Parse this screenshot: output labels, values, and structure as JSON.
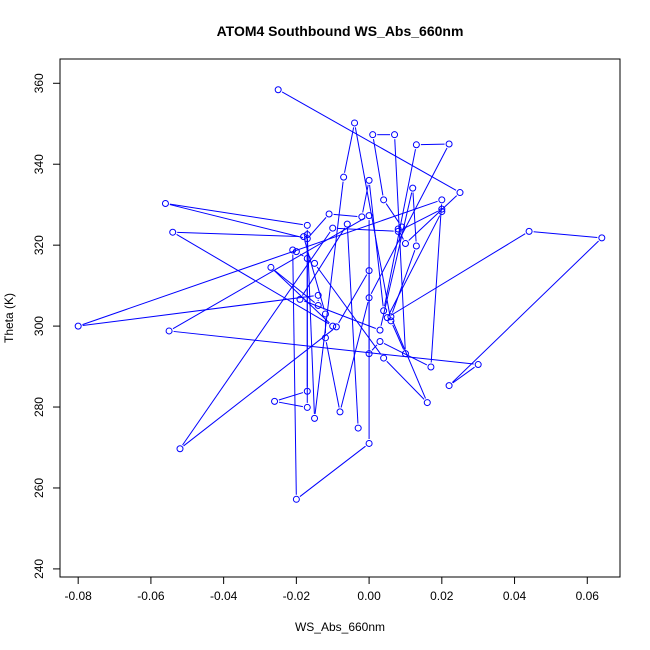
{
  "chart_data": {
    "type": "line",
    "title": "ATOM4 Southbound WS_Abs_660nm",
    "xlabel": "WS_Abs_660nm",
    "ylabel": "Theta (K)",
    "xlim": [
      -0.085,
      0.069
    ],
    "ylim": [
      238,
      366
    ],
    "xticks": [
      "-0.08",
      "-0.06",
      "-0.04",
      "-0.02",
      "0.00",
      "0.02",
      "0.04",
      "0.06"
    ],
    "yticks": [
      "240",
      "260",
      "280",
      "300",
      "320",
      "340",
      "360"
    ],
    "grid": false,
    "series": [
      {
        "color": "#0000ff",
        "marker": "open-circle",
        "points": [
          [
            -0.025,
            358.4
          ],
          [
            0.025,
            333.0
          ],
          [
            0.01,
            320.4
          ],
          [
            0.008,
            324.0
          ],
          [
            0.009,
            324.5
          ],
          [
            0.004,
            331.2
          ],
          [
            0.001,
            347.3
          ],
          [
            0.007,
            347.3
          ],
          [
            0.01,
            293.2
          ],
          [
            0.006,
            301.3
          ],
          [
            -0.004,
            350.2
          ],
          [
            -0.007,
            336.8
          ],
          [
            -0.015,
            277.2
          ],
          [
            -0.017,
            322.6
          ],
          [
            -0.017,
            279.9
          ],
          [
            -0.026,
            281.4
          ],
          [
            -0.017,
            283.9
          ],
          [
            -0.017,
            324.9
          ],
          [
            -0.056,
            330.3
          ],
          [
            -0.017,
            321.6
          ],
          [
            -0.011,
            327.7
          ],
          [
            -0.002,
            327.0
          ],
          [
            0.0,
            336.0
          ],
          [
            0.004,
            303.8
          ],
          [
            0.013,
            344.8
          ],
          [
            0.022,
            345.0
          ],
          [
            0.0,
            307.0
          ],
          [
            -0.008,
            278.8
          ],
          [
            -0.012,
            297.1
          ],
          [
            -0.012,
            303.0
          ],
          [
            -0.018,
            322.1
          ],
          [
            -0.054,
            323.2
          ],
          [
            -0.01,
            300.0
          ],
          [
            -0.027,
            314.5
          ],
          [
            -0.014,
            305.1
          ],
          [
            -0.014,
            307.6
          ],
          [
            -0.08,
            300.0
          ],
          [
            0.02,
            331.2
          ],
          [
            0.017,
            289.9
          ],
          [
            0.003,
            296.2
          ],
          [
            0.0,
            293.2
          ],
          [
            0.0,
            327.3
          ],
          [
            -0.055,
            298.8
          ],
          [
            0.03,
            290.5
          ],
          [
            0.022,
            285.3
          ],
          [
            0.064,
            321.8
          ],
          [
            0.044,
            323.4
          ],
          [
            0.005,
            302.1
          ],
          [
            0.02,
            328.3
          ],
          [
            0.02,
            328.9
          ],
          [
            0.008,
            323.4
          ],
          [
            -0.01,
            324.2
          ],
          [
            -0.052,
            269.7
          ],
          [
            -0.009,
            299.8
          ],
          [
            0.0,
            313.7
          ],
          [
            0.0,
            271.0
          ],
          [
            -0.02,
            257.2
          ],
          [
            -0.021,
            318.8
          ],
          [
            -0.02,
            318.4
          ],
          [
            -0.017,
            316.7
          ],
          [
            -0.015,
            315.5
          ],
          [
            0.004,
            292.1
          ],
          [
            0.016,
            281.1
          ],
          [
            0.006,
            302.3
          ],
          [
            0.013,
            319.8
          ],
          [
            0.012,
            334.1
          ],
          [
            0.003,
            299.0
          ],
          [
            -0.019,
            306.6
          ],
          [
            -0.006,
            325.2
          ],
          [
            -0.003,
            274.8
          ]
        ]
      }
    ]
  }
}
